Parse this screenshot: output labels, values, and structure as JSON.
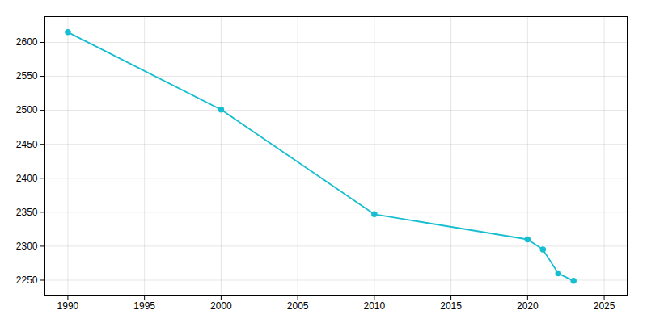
{
  "chart_data": {
    "type": "line",
    "x": [
      1990,
      2000,
      2010,
      2020,
      2021,
      2022,
      2023
    ],
    "values": [
      2615,
      2501,
      2347,
      2310,
      2295,
      2260,
      2249
    ],
    "color": "#17becf",
    "marker": "circle",
    "xlim": [
      1988.5,
      2026.5
    ],
    "ylim": [
      2228,
      2638
    ],
    "xticks": [
      1990,
      1995,
      2000,
      2005,
      2010,
      2015,
      2020,
      2025
    ],
    "yticks": [
      2250,
      2300,
      2350,
      2400,
      2450,
      2500,
      2550,
      2600
    ],
    "grid": true
  }
}
